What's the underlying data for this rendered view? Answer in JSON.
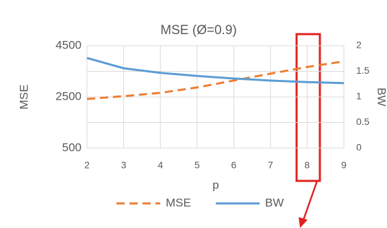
{
  "chart_data": {
    "type": "line",
    "title": "MSE (Ø=0.9)",
    "x_label": "p",
    "y_label": "MSE",
    "y2_label": "BW",
    "x": [
      2,
      3,
      4,
      5,
      6,
      7,
      8,
      9
    ],
    "series": [
      {
        "name": "MSE",
        "color": "#ED7D31",
        "dashed": true,
        "values": [
          2420,
          2530,
          2660,
          2870,
          3140,
          3410,
          3670,
          3890
        ]
      },
      {
        "name": "BW",
        "color": "#5B9BD5",
        "axis": "y2",
        "values": [
          1.76,
          1.56,
          1.47,
          1.41,
          1.36,
          1.32,
          1.29,
          1.27
        ]
      }
    ],
    "xlim": [
      2,
      9
    ],
    "xticks": [
      2,
      3,
      4,
      5,
      6,
      7,
      8,
      9
    ],
    "ylim": [
      500,
      4500
    ],
    "yticks": [
      500,
      2500,
      4500
    ],
    "y2lim": [
      0,
      2
    ],
    "y2ticks": [
      0,
      0.5,
      1,
      1.5,
      2
    ],
    "grid": true,
    "legend": "bottom"
  }
}
